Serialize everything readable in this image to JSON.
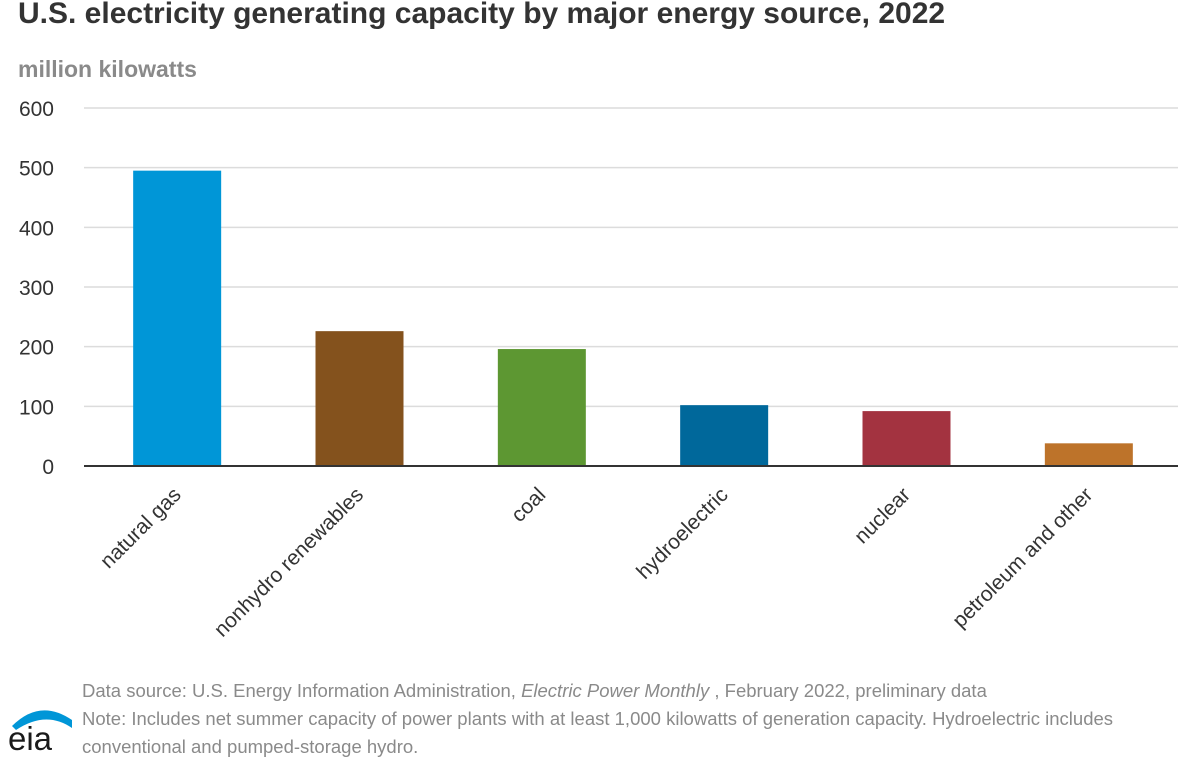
{
  "chart_data": {
    "type": "bar",
    "title": "U.S. electricity generating capacity by major energy source, 2022",
    "subtitle": "million kilowatts",
    "categories": [
      "natural gas",
      "nonhydro renewables",
      "coal",
      "hydroelectric",
      "nuclear",
      "petroleum and other"
    ],
    "values": [
      495,
      226,
      196,
      102,
      92,
      38
    ],
    "colors": [
      "#0096d7",
      "#84521d",
      "#5d9732",
      "#00689b",
      "#a33340",
      "#bd732a"
    ],
    "ylim": [
      0,
      600
    ],
    "yticks": [
      "0",
      "100",
      "200",
      "300",
      "400",
      "500",
      "600"
    ],
    "grid": true,
    "legend": "none"
  },
  "footer": {
    "source_prefix": "Data source: U.S. Energy Information Administration, ",
    "source_title": "Electric Power Monthly",
    "source_suffix": " , February 2022, preliminary data",
    "note": "Note: Includes net summer capacity of power plants with at least 1,000 kilowatts of generation capacity. Hydroelectric includes conventional and pumped-storage hydro."
  },
  "logo": {
    "text": "eia",
    "arc_color": "#0096d7"
  }
}
